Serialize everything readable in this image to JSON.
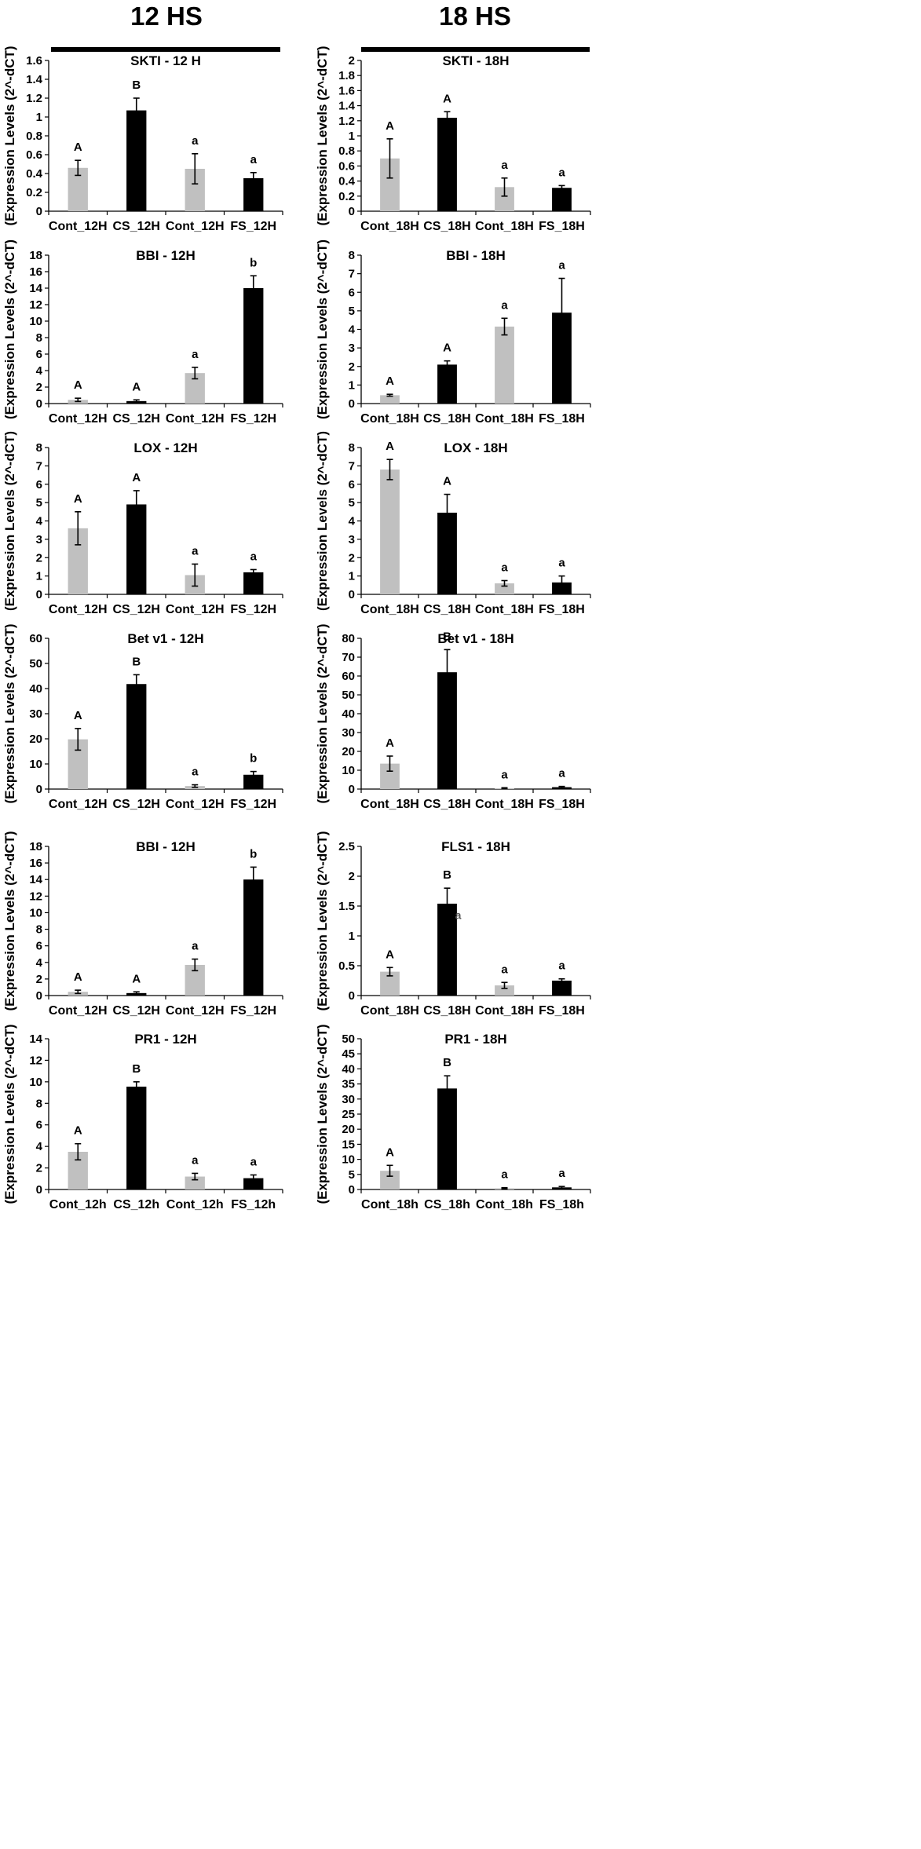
{
  "header": {
    "left_title": "12 HS",
    "right_title": "18 HS"
  },
  "colors": {
    "control": "#c0c0c0",
    "stress": "#000000"
  },
  "chart_data": [
    {
      "type": "bar",
      "title": "SKTI - 12 H",
      "ylabel": "(Expression Levels (2^-dCT)",
      "ylim": [
        0,
        1.6
      ],
      "yticks": [
        "0",
        "0.2",
        "0.4",
        "0.6",
        "0.8",
        "1",
        "1.2",
        "1.4",
        "1.6"
      ],
      "categories": [
        "Cont_12H",
        "CS_12H",
        "Cont_12H",
        "FS_12H"
      ],
      "values": [
        0.46,
        1.07,
        0.45,
        0.35
      ],
      "errors": [
        0.08,
        0.13,
        0.16,
        0.06
      ],
      "labels": [
        "A",
        "B",
        "a",
        "a"
      ]
    },
    {
      "type": "bar",
      "title": "SKTI - 18H",
      "ylabel": "(Expression Levels (2^-dCT)",
      "ylim": [
        0,
        2
      ],
      "yticks": [
        "0",
        "0.2",
        "0.4",
        "0.6",
        "0.8",
        "1",
        "1.2",
        "1.4",
        "1.6",
        "1.8",
        "2"
      ],
      "categories": [
        "Cont_18H",
        "CS_18H",
        "Cont_18H",
        "FS_18H"
      ],
      "values": [
        0.7,
        1.24,
        0.32,
        0.31
      ],
      "errors": [
        0.26,
        0.08,
        0.12,
        0.03
      ],
      "labels": [
        "A",
        "A",
        "a",
        "a"
      ]
    },
    {
      "type": "bar",
      "title": "BBI - 12H",
      "ylabel": "(Expression Levels (2^-dCT)",
      "ylim": [
        0,
        18
      ],
      "yticks": [
        "0",
        "2",
        "4",
        "6",
        "8",
        "10",
        "12",
        "14",
        "16",
        "18"
      ],
      "categories": [
        "Cont_12H",
        "CS_12H",
        "Cont_12H",
        "FS_12H"
      ],
      "values": [
        0.45,
        0.3,
        3.7,
        14.0
      ],
      "errors": [
        0.2,
        0.15,
        0.7,
        1.5
      ],
      "labels": [
        "A",
        "A",
        "a",
        "b"
      ]
    },
    {
      "type": "bar",
      "title": "BBI - 18H",
      "ylabel": "(Expression Levels (2^-dCT)",
      "ylim": [
        0,
        8
      ],
      "yticks": [
        "0",
        "1",
        "2",
        "3",
        "4",
        "5",
        "6",
        "7",
        "8"
      ],
      "categories": [
        "Cont_18H",
        "CS_18H",
        "Cont_18H",
        "FS_18H"
      ],
      "values": [
        0.45,
        2.1,
        4.15,
        4.9
      ],
      "errors": [
        0.05,
        0.2,
        0.45,
        1.85
      ],
      "labels": [
        "A",
        "A",
        "a",
        "a"
      ]
    },
    {
      "type": "bar",
      "title": "LOX - 12H",
      "ylabel": "(Expression Levels (2^-dCT)",
      "ylim": [
        0,
        8
      ],
      "yticks": [
        "0",
        "1",
        "2",
        "3",
        "4",
        "5",
        "6",
        "7",
        "8"
      ],
      "categories": [
        "Cont_12H",
        "CS_12H",
        "Cont_12H",
        "FS_12H"
      ],
      "values": [
        3.6,
        4.9,
        1.05,
        1.2
      ],
      "errors": [
        0.9,
        0.75,
        0.6,
        0.15
      ],
      "labels": [
        "A",
        "A",
        "a",
        "a"
      ]
    },
    {
      "type": "bar",
      "title": "LOX - 18H",
      "ylabel": "(Expression Levels (2^-dCT)",
      "ylim": [
        0,
        8
      ],
      "yticks": [
        "0",
        "1",
        "2",
        "3",
        "4",
        "5",
        "6",
        "7",
        "8"
      ],
      "categories": [
        "Cont_18H",
        "CS_18H",
        "Cont_18H",
        "FS_18H"
      ],
      "values": [
        6.8,
        4.45,
        0.6,
        0.65
      ],
      "errors": [
        0.55,
        1.0,
        0.15,
        0.35
      ],
      "labels": [
        "A",
        "A",
        "a",
        "a"
      ]
    },
    {
      "type": "bar",
      "title": "Bet v1 - 12H",
      "ylabel": "(Expression Levels (2^-dCT)",
      "ylim": [
        0,
        60
      ],
      "yticks": [
        "0",
        "10",
        "20",
        "30",
        "40",
        "50",
        "60"
      ],
      "categories": [
        "Cont_12H",
        "CS_12H",
        "Cont_12H",
        "FS_12H"
      ],
      "values": [
        19.8,
        41.8,
        1.2,
        5.7
      ],
      "errors": [
        4.3,
        3.7,
        0.5,
        1.3
      ],
      "labels": [
        "A",
        "B",
        "a",
        "b"
      ]
    },
    {
      "type": "bar",
      "title": "Bet v1 - 18H",
      "ylabel": "(Expression Levels (2^-dCT)",
      "ylim": [
        0,
        80
      ],
      "yticks": [
        "0",
        "10",
        "20",
        "30",
        "40",
        "50",
        "60",
        "70",
        "80"
      ],
      "categories": [
        "Cont_18H",
        "CS_18H",
        "Cont_18H",
        "FS_18H"
      ],
      "values": [
        13.5,
        62.0,
        0.4,
        1.0
      ],
      "errors": [
        4.0,
        12.0,
        0.3,
        0.4
      ],
      "labels": [
        "A",
        "B",
        "a",
        "a"
      ]
    },
    {
      "type": "bar",
      "title": "BBI - 12H",
      "ylabel": "(Expression Levels (2^-dCT)",
      "ylim": [
        0,
        18
      ],
      "yticks": [
        "0",
        "2",
        "4",
        "6",
        "8",
        "10",
        "12",
        "14",
        "16",
        "18"
      ],
      "categories": [
        "Cont_12H",
        "CS_12H",
        "Cont_12H",
        "FS_12H"
      ],
      "values": [
        0.45,
        0.3,
        3.7,
        14.0
      ],
      "errors": [
        0.2,
        0.15,
        0.7,
        1.5
      ],
      "labels": [
        "A",
        "A",
        "a",
        "b"
      ]
    },
    {
      "type": "bar",
      "title": "FLS1 - 18H",
      "ylabel": "(Expression Levels (2^-dCT)",
      "ylim": [
        0,
        2.5
      ],
      "yticks": [
        "0",
        "0.5",
        "1",
        "1.5",
        "2",
        "2.5"
      ],
      "categories": [
        "Cont_18H",
        "CS_18H",
        "Cont_18H",
        "FS_18H"
      ],
      "values": [
        0.4,
        1.54,
        0.17,
        0.25
      ],
      "errors": [
        0.07,
        0.26,
        0.05,
        0.03
      ],
      "labels": [
        "A",
        "B",
        "a",
        "a"
      ],
      "annotations": [
        {
          "text": "a",
          "series_index": 1,
          "at_value": 1.35
        }
      ]
    },
    {
      "type": "bar",
      "title": "PR1 - 12H",
      "ylabel": "(Expression Levels (2^-dCT)",
      "ylim": [
        0,
        14
      ],
      "yticks": [
        "0",
        "2",
        "4",
        "6",
        "8",
        "10",
        "12",
        "14"
      ],
      "categories": [
        "Cont_12h",
        "CS_12h",
        "Cont_12h",
        "FS_12h"
      ],
      "values": [
        3.5,
        9.55,
        1.2,
        1.05
      ],
      "errors": [
        0.75,
        0.45,
        0.3,
        0.3
      ],
      "labels": [
        "A",
        "B",
        "a",
        "a"
      ]
    },
    {
      "type": "bar",
      "title": "PR1 - 18H",
      "ylabel": "(Expression Levels (2^-dCT)",
      "ylim": [
        0,
        50
      ],
      "yticks": [
        "0",
        "5",
        "10",
        "15",
        "20",
        "25",
        "30",
        "35",
        "40",
        "45",
        "50"
      ],
      "categories": [
        "Cont_18h",
        "CS_18h",
        "Cont_18h",
        "FS_18h"
      ],
      "values": [
        6.2,
        33.5,
        0.4,
        0.7
      ],
      "errors": [
        1.8,
        4.2,
        0.2,
        0.3
      ],
      "labels": [
        "A",
        "B",
        "a",
        "a"
      ]
    }
  ]
}
